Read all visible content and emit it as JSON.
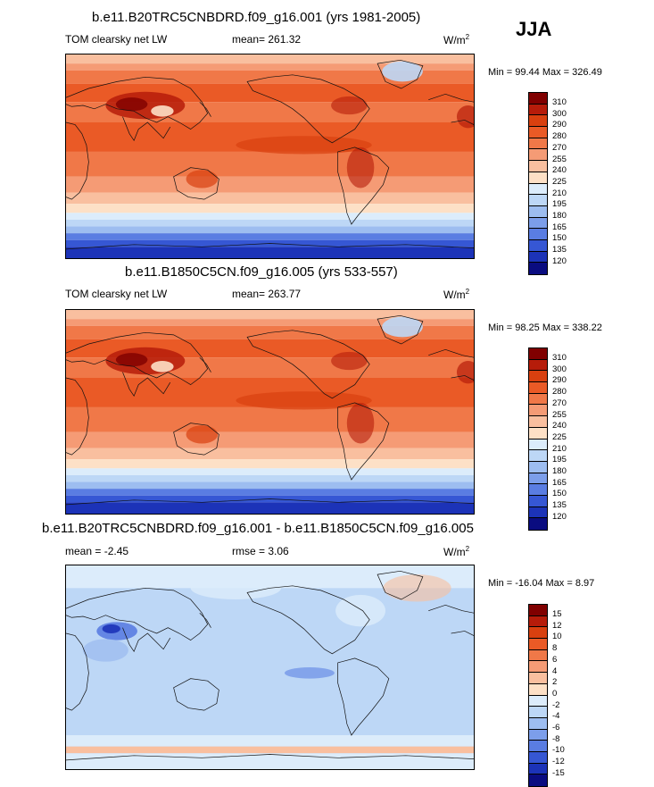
{
  "season": "JJA",
  "panels": [
    {
      "title": "b.e11.B20TRC5CNBDRD.f09_g16.001 (yrs 1981-2005)",
      "left_label": "TOM clearsky net LW",
      "center_label": "mean= 261.32",
      "units": "W/m",
      "units_sup": "2",
      "minmax": "Min =  99.44 Max = 326.49",
      "colorbar": {
        "labels": [
          "310",
          "300",
          "290",
          "280",
          "270",
          "255",
          "240",
          "225",
          "210",
          "195",
          "180",
          "165",
          "150",
          "135",
          "120"
        ],
        "colors": [
          "#800000",
          "#b61c0a",
          "#d9400f",
          "#ea5a26",
          "#f07848",
          "#f59b75",
          "#f9bf9f",
          "#fde0c6",
          "#dcecfb",
          "#bdd7f6",
          "#9dbdf0",
          "#7c9eea",
          "#5a7de2",
          "#3657d4",
          "#1c33b8",
          "#0a0c80"
        ]
      },
      "field": "lw_clim"
    },
    {
      "title": "b.e11.B1850C5CN.f09_g16.005 (yrs 533-557)",
      "left_label": "TOM clearsky net LW",
      "center_label": "mean= 263.77",
      "units": "W/m",
      "units_sup": "2",
      "minmax": "Min =  98.25 Max = 338.22",
      "colorbar": {
        "labels": [
          "310",
          "300",
          "290",
          "280",
          "270",
          "255",
          "240",
          "225",
          "210",
          "195",
          "180",
          "165",
          "150",
          "135",
          "120"
        ],
        "colors": [
          "#800000",
          "#b61c0a",
          "#d9400f",
          "#ea5a26",
          "#f07848",
          "#f59b75",
          "#f9bf9f",
          "#fde0c6",
          "#dcecfb",
          "#bdd7f6",
          "#9dbdf0",
          "#7c9eea",
          "#5a7de2",
          "#3657d4",
          "#1c33b8",
          "#0a0c80"
        ]
      },
      "field": "lw_clim"
    },
    {
      "title": "b.e11.B20TRC5CNBDRD.f09_g16.001 - b.e11.B1850C5CN.f09_g16.005",
      "left_label": "mean =  -2.45",
      "center_label": "rmse =   3.06",
      "units": "W/m",
      "units_sup": "2",
      "minmax": "Min = -16.04 Max =   8.97",
      "colorbar": {
        "labels": [
          "15",
          "12",
          "10",
          "8",
          "6",
          "4",
          "2",
          "0",
          "-2",
          "-4",
          "-6",
          "-8",
          "-10",
          "-12",
          "-15"
        ],
        "colors": [
          "#800000",
          "#b61c0a",
          "#d9400f",
          "#ea5a26",
          "#f07848",
          "#f59b75",
          "#f9bf9f",
          "#fde0c6",
          "#dcecfb",
          "#bdd7f6",
          "#9dbdf0",
          "#7c9eea",
          "#5a7de2",
          "#3657d4",
          "#1c33b8",
          "#0a0c80"
        ]
      },
      "field": "lw_diff"
    }
  ]
}
